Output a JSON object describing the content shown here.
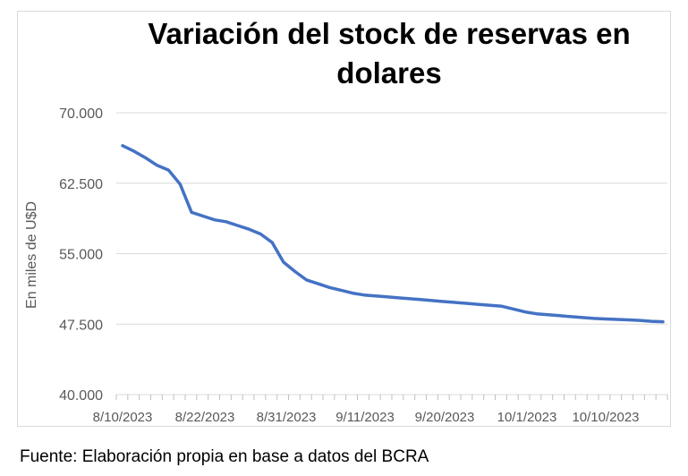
{
  "source_note": "Fuente: Elaboración propia en base a datos del BCRA",
  "chart_data": {
    "type": "line",
    "title": "Variación del stock de reservas en dolares",
    "ylabel": "En miles de U$D",
    "xlabel": "",
    "ylim": [
      40000,
      70000
    ],
    "yticks": [
      {
        "value": 40000,
        "label": "40.000"
      },
      {
        "value": 47500,
        "label": "47.500"
      },
      {
        "value": 55000,
        "label": "55.000"
      },
      {
        "value": 62500,
        "label": "62.500"
      },
      {
        "value": 70000,
        "label": "70.000"
      }
    ],
    "xticks": [
      "8/10/2023",
      "8/22/2023",
      "8/31/2023",
      "9/11/2023",
      "9/20/2023",
      "10/1/2023",
      "10/10/2023"
    ],
    "grid": true,
    "line_color": "#4472c4",
    "series": [
      {
        "values": [
          66500,
          65900,
          65200,
          64400,
          63900,
          62400,
          59400,
          59000,
          58600,
          58400,
          58000,
          57600,
          57100,
          56200,
          54100,
          53100,
          52200,
          51800,
          51400,
          51100,
          50800,
          50600,
          50500,
          50400,
          50300,
          50200,
          50100,
          50000,
          49900,
          49800,
          49700,
          49600,
          49500,
          49400,
          49100,
          48800,
          48600,
          48500,
          48400,
          48300,
          48200,
          48100,
          48050,
          48000,
          47950,
          47900,
          47800,
          47750
        ]
      }
    ]
  }
}
